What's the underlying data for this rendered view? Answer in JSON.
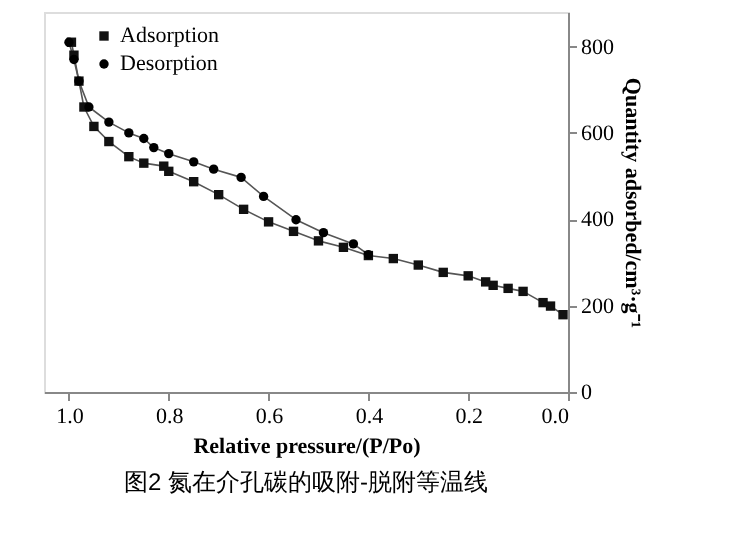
{
  "chart_data": {
    "type": "line",
    "title": "图2 氮在介孔碳的吸附-脱附等温线",
    "xlabel": "Relative pressure/(P/Po)",
    "ylabel": "Quantity adsorbed/cm³·g⁻¹",
    "xlim": [
      1.05,
      0
    ],
    "ylim": [
      0,
      880
    ],
    "xticks": [
      {
        "value": 1,
        "label": "1.0"
      },
      0.8,
      0.6,
      0.4,
      0.2,
      {
        "value": 0,
        "label": "0.0"
      }
    ],
    "yticks": [
      0,
      200,
      400,
      600,
      800
    ],
    "legend": "top left",
    "grid": false,
    "line_style": "solid",
    "series": [
      {
        "name": "Adsorption",
        "color": "#111111",
        "marker": "square",
        "x": [
          0.01,
          0.035,
          0.05,
          0.09,
          0.12,
          0.15,
          0.165,
          0.2,
          0.25,
          0.3,
          0.35,
          0.4,
          0.45,
          0.5,
          0.55,
          0.6,
          0.65,
          0.7,
          0.75,
          0.8,
          0.81,
          0.85,
          0.88,
          0.92,
          0.95,
          0.97,
          0.98,
          0.99,
          0.995
        ],
        "values": [
          179,
          199,
          207,
          233,
          240,
          247,
          255,
          269,
          277,
          294,
          309,
          316,
          335,
          350,
          372,
          394,
          423,
          457,
          487,
          511,
          523,
          530,
          545,
          580,
          615,
          660,
          720,
          780,
          810
        ]
      },
      {
        "name": "Desorption",
        "color": "#000000",
        "marker": "circle",
        "x": [
          0.4,
          0.43,
          0.49,
          0.545,
          0.61,
          0.655,
          0.71,
          0.75,
          0.8,
          0.83,
          0.85,
          0.88,
          0.92,
          0.96,
          0.98,
          0.99,
          1.0
        ],
        "values": [
          318,
          343,
          369,
          399,
          453,
          497,
          516,
          533,
          552,
          566,
          587,
          600,
          625,
          660,
          720,
          770,
          810
        ]
      }
    ]
  }
}
